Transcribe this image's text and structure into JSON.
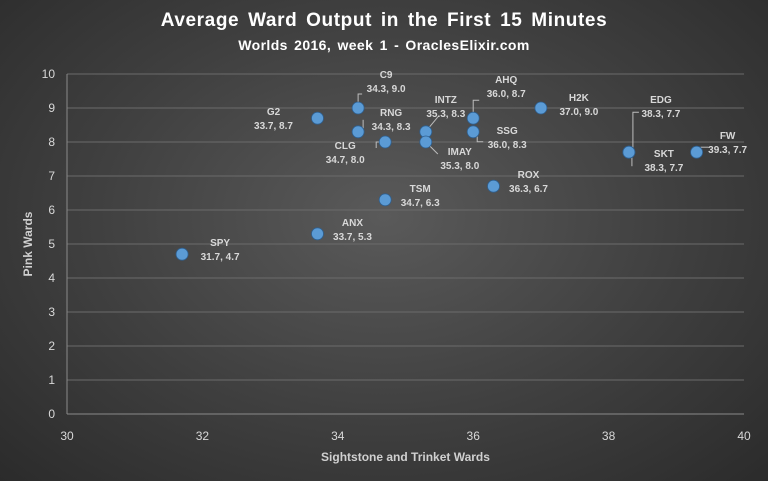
{
  "chart_data": {
    "type": "scatter",
    "title": "Average Ward Output in the First 15 Minutes",
    "subtitle": "Worlds 2016, week 1 - OraclesElixir.com",
    "xlabel": "Sightstone and Trinket Wards",
    "ylabel": "Pink Wards",
    "xlim": [
      30,
      40
    ],
    "ylim": [
      0,
      10
    ],
    "xticks": [
      30,
      32,
      34,
      36,
      38,
      40
    ],
    "yticks": [
      0,
      1,
      2,
      3,
      4,
      5,
      6,
      7,
      8,
      9,
      10
    ],
    "grid": "horizontal",
    "marker_color": "#5b9bd5",
    "points": [
      {
        "team": "C9",
        "x": 34.3,
        "y": 9.0,
        "coord": "34.3, 9.0"
      },
      {
        "team": "G2",
        "x": 33.7,
        "y": 8.7,
        "coord": "33.7, 8.7"
      },
      {
        "team": "RNG",
        "x": 34.3,
        "y": 8.3,
        "coord": "34.3, 8.3"
      },
      {
        "team": "INTZ",
        "x": 35.3,
        "y": 8.3,
        "coord": "35.3, 8.3"
      },
      {
        "team": "AHQ",
        "x": 36.0,
        "y": 8.7,
        "coord": "36.0, 8.7"
      },
      {
        "team": "H2K",
        "x": 37.0,
        "y": 9.0,
        "coord": "37.0, 9.0"
      },
      {
        "team": "EDG",
        "x": 38.3,
        "y": 7.7,
        "coord": "38.3, 7.7"
      },
      {
        "team": "FW",
        "x": 39.3,
        "y": 7.7,
        "coord": "39.3, 7.7"
      },
      {
        "team": "CLG",
        "x": 34.7,
        "y": 8.0,
        "coord": "34.7, 8.0"
      },
      {
        "team": "IMAY",
        "x": 35.3,
        "y": 8.0,
        "coord": "35.3, 8.0"
      },
      {
        "team": "SSG",
        "x": 36.0,
        "y": 8.3,
        "coord": "36.0, 8.3"
      },
      {
        "team": "SKT",
        "x": 38.3,
        "y": 7.7,
        "coord": "38.3, 7.7"
      },
      {
        "team": "TSM",
        "x": 34.7,
        "y": 6.3,
        "coord": "34.7, 6.3"
      },
      {
        "team": "ROX",
        "x": 36.3,
        "y": 6.7,
        "coord": "36.3, 6.7"
      },
      {
        "team": "ANX",
        "x": 33.7,
        "y": 5.3,
        "coord": "33.7, 5.3"
      },
      {
        "team": "SPY",
        "x": 31.7,
        "y": 4.7,
        "coord": "31.7, 4.7"
      }
    ]
  }
}
